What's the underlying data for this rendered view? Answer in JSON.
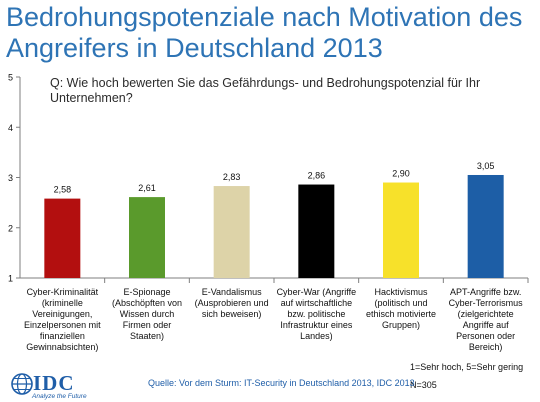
{
  "title": "Bedrohungspotenziale nach Motivation des Angreifers in Deutschland 2013",
  "question": "Q: Wie hoch bewerten Sie das Gefährdungs- und Bedrohungspotenzial für Ihr Unternehmen?",
  "legend_note": "1=Sehr hoch, 5=Sehr gering",
  "n_note": "N=305",
  "source": "Quelle: Vor dem Sturm: IT-Security in Deutschland 2013, IDC 2013",
  "logo": {
    "name": "IDC",
    "tagline": "Analyze the Future",
    "icon": "idc-globe-icon"
  },
  "chart_data": {
    "type": "bar",
    "title": "Bedrohungspotenziale nach Motivation des Angreifers in Deutschland 2013",
    "ylim": [
      1,
      5
    ],
    "yticks": [
      "1",
      "2",
      "3",
      "4",
      "5"
    ],
    "grid": false,
    "categories": [
      "Cyber-Kriminalität (kriminelle Vereinigungen, Einzelpersonen mit finanziellen Gewinnabsichten)",
      "E-Spionage (Abschöpften von Wissen durch Firmen oder Staaten)",
      "E-Vandalismus (Ausprobieren und sich beweisen)",
      "Cyber-War (Angriffe auf wirtschaftliche bzw. politische Infrastruktur eines Landes)",
      "Hacktivismus (politisch und ethisch motivierte Gruppen)",
      "APT-Angriffe bzw. Cyber-Terrorismus (zielgerichtete Angriffe auf Personen oder Bereich)"
    ],
    "values": [
      2.58,
      2.61,
      2.83,
      2.86,
      2.9,
      3.05
    ],
    "data_labels": [
      "2,58",
      "2,61",
      "2,83",
      "2,86",
      "2,90",
      "3,05"
    ],
    "colors": [
      "#b30f0f",
      "#5a9a2c",
      "#ddd3a8",
      "#000000",
      "#f7e12a",
      "#1d5ea6"
    ]
  }
}
